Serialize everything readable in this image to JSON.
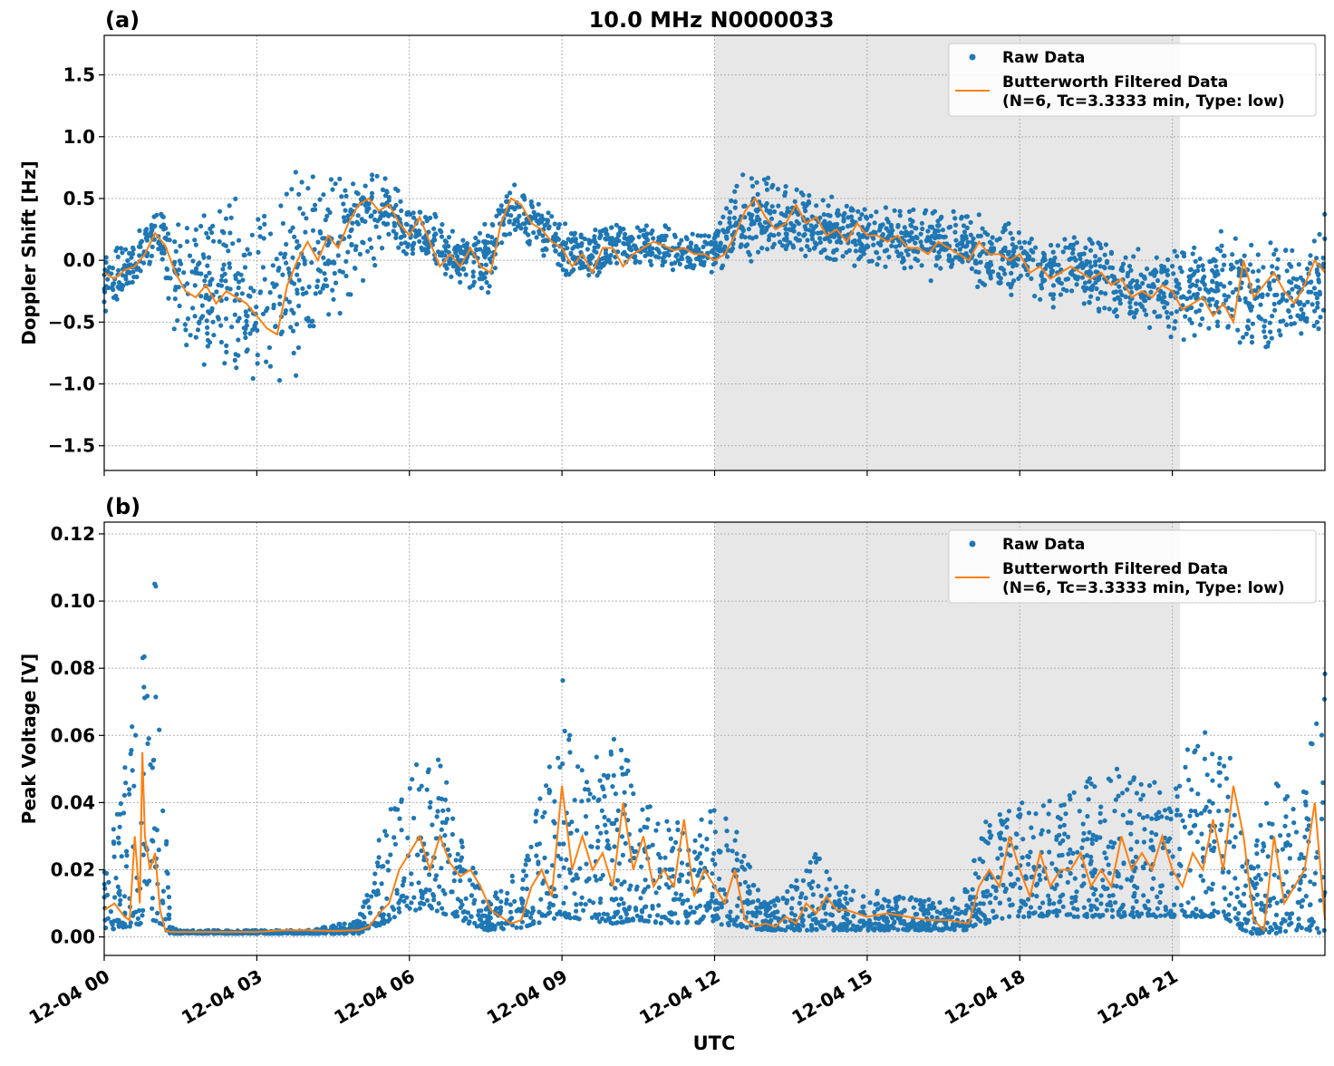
{
  "figure": {
    "title": "10.0 MHz N0000033",
    "xlabel": "UTC",
    "colors": {
      "raw": "#1f77b4",
      "filtered": "#ff7f0e",
      "shade": "#e7e7e7",
      "grid": "#b0b0b0"
    }
  },
  "legend": {
    "raw_label": "Raw Data",
    "filtered_label_1": "Butterworth Filtered Data",
    "filtered_label_2": "(N=6, Tc=3.3333 min, Type: low)",
    "placement": "upper-right"
  },
  "chart_data": [
    {
      "type": "scatter+line",
      "panel_label": "(a)",
      "title": "10.0 MHz N0000033",
      "ylabel": "Doppler Shift [Hz]",
      "xlabel": "",
      "x_unit": "hours since 12-04 00:00 UTC",
      "xlim": [
        0,
        24
      ],
      "ylim": [
        -1.7,
        1.82
      ],
      "yticks": [
        -1.5,
        -1.0,
        -0.5,
        0.0,
        0.5,
        1.0,
        1.5
      ],
      "ytick_labels": [
        "−1.5",
        "−1.0",
        "−0.5",
        "0.0",
        "0.5",
        "1.0",
        "1.5"
      ],
      "grid": true,
      "shaded_interval": [
        12.0,
        21.15
      ],
      "series": [
        {
          "name": "Butterworth Filtered Data",
          "x": [
            0,
            0.2,
            0.4,
            0.6,
            0.8,
            1.0,
            1.2,
            1.4,
            1.6,
            1.8,
            2.0,
            2.2,
            2.4,
            2.6,
            2.8,
            3.0,
            3.2,
            3.4,
            3.6,
            3.8,
            4.0,
            4.2,
            4.4,
            4.6,
            4.8,
            5.0,
            5.2,
            5.4,
            5.6,
            5.8,
            6.0,
            6.2,
            6.4,
            6.6,
            6.8,
            7.0,
            7.2,
            7.4,
            7.6,
            7.8,
            8.0,
            8.2,
            8.4,
            8.6,
            8.8,
            9.0,
            9.2,
            9.4,
            9.6,
            9.8,
            10.0,
            10.2,
            10.4,
            10.6,
            10.8,
            11.0,
            11.2,
            11.4,
            11.6,
            11.8,
            12.0,
            12.2,
            12.4,
            12.6,
            12.8,
            13.0,
            13.2,
            13.4,
            13.6,
            13.8,
            14.0,
            14.2,
            14.4,
            14.6,
            14.8,
            15.0,
            15.2,
            15.4,
            15.6,
            15.8,
            16.0,
            16.2,
            16.4,
            16.6,
            16.8,
            17.0,
            17.2,
            17.4,
            17.6,
            17.8,
            18.0,
            18.2,
            18.4,
            18.6,
            18.8,
            19.0,
            19.2,
            19.4,
            19.6,
            19.8,
            20.0,
            20.2,
            20.4,
            20.6,
            20.8,
            21.0,
            21.2,
            21.4,
            21.6,
            21.8,
            22.0,
            22.2,
            22.4,
            22.6,
            22.8,
            23.0,
            23.2,
            23.4,
            23.6,
            23.8,
            24.0
          ],
          "y": [
            -0.1,
            -0.15,
            -0.08,
            -0.05,
            0.05,
            0.22,
            0.12,
            -0.1,
            -0.25,
            -0.3,
            -0.2,
            -0.35,
            -0.25,
            -0.3,
            -0.35,
            -0.45,
            -0.55,
            -0.6,
            -0.2,
            0.0,
            0.15,
            0.0,
            0.2,
            0.1,
            0.3,
            0.45,
            0.5,
            0.4,
            0.45,
            0.3,
            0.2,
            0.35,
            0.15,
            -0.05,
            0.05,
            -0.05,
            0.1,
            -0.05,
            -0.1,
            0.3,
            0.5,
            0.45,
            0.3,
            0.25,
            0.15,
            0.1,
            -0.05,
            0.05,
            -0.1,
            0.1,
            0.1,
            -0.05,
            0.05,
            0.1,
            0.15,
            0.12,
            0.08,
            0.1,
            0.05,
            0.05,
            0.0,
            0.05,
            0.2,
            0.4,
            0.5,
            0.35,
            0.25,
            0.3,
            0.45,
            0.3,
            0.35,
            0.2,
            0.25,
            0.15,
            0.3,
            0.2,
            0.2,
            0.15,
            0.2,
            0.1,
            0.1,
            0.05,
            0.15,
            0.1,
            0.05,
            0.0,
            0.15,
            0.05,
            0.05,
            0.0,
            0.05,
            -0.1,
            -0.05,
            -0.15,
            -0.1,
            -0.05,
            -0.1,
            -0.15,
            -0.1,
            -0.2,
            -0.15,
            -0.3,
            -0.25,
            -0.3,
            -0.2,
            -0.25,
            -0.4,
            -0.35,
            -0.3,
            -0.45,
            -0.35,
            -0.5,
            0.0,
            -0.3,
            -0.2,
            -0.1,
            -0.25,
            -0.35,
            -0.2,
            0.0,
            -0.1
          ]
        },
        {
          "name": "Raw Data",
          "x": [
            0,
            0.5,
            1.0,
            1.5,
            2.0,
            2.5,
            3.0,
            3.5,
            4.0,
            4.5,
            5.0,
            5.5,
            6.0,
            6.5,
            7.0,
            7.5,
            8.0,
            8.5,
            9.0,
            9.5,
            10.0,
            10.5,
            11.0,
            11.5,
            12.0,
            12.5,
            13.0,
            13.5,
            14.0,
            14.5,
            15.0,
            15.5,
            16.0,
            16.5,
            17.0,
            17.5,
            18.0,
            18.5,
            19.0,
            19.5,
            20.0,
            20.5,
            21.0,
            21.5,
            22.0,
            22.5,
            23.0,
            23.5,
            24.0
          ],
          "y_low": [
            -0.45,
            -0.35,
            0.0,
            -0.85,
            -0.95,
            -0.9,
            -1.1,
            -1.25,
            -0.8,
            -0.6,
            -0.3,
            0.05,
            0.0,
            -0.15,
            -0.2,
            -0.3,
            0.1,
            0.05,
            -0.15,
            -0.2,
            -0.05,
            -0.1,
            -0.1,
            -0.1,
            -0.15,
            -0.1,
            0.0,
            -0.05,
            0.0,
            -0.05,
            -0.1,
            -0.1,
            -0.15,
            -0.2,
            -0.25,
            -0.3,
            -0.3,
            -0.4,
            -0.4,
            -0.45,
            -0.5,
            -0.6,
            -0.65,
            -0.7,
            -0.55,
            -0.75,
            -0.8,
            -0.7,
            -0.6
          ],
          "y_high": [
            0.1,
            0.15,
            0.45,
            0.45,
            0.6,
            0.55,
            0.5,
            0.75,
            0.8,
            0.75,
            0.9,
            0.75,
            0.45,
            0.4,
            0.25,
            0.3,
            0.7,
            0.55,
            0.35,
            0.3,
            0.35,
            0.3,
            0.3,
            0.25,
            0.3,
            0.75,
            0.7,
            0.65,
            0.55,
            0.5,
            0.45,
            0.45,
            0.45,
            0.5,
            0.4,
            0.35,
            0.3,
            0.25,
            0.25,
            0.2,
            0.15,
            0.1,
            0.1,
            0.15,
            0.3,
            0.15,
            0.2,
            0.25,
            0.45
          ]
        }
      ]
    },
    {
      "type": "scatter+line",
      "panel_label": "(b)",
      "ylabel": "Peak Voltage [V]",
      "xlabel": "UTC",
      "x_unit": "hours since 12-04 00:00 UTC",
      "xlim": [
        0,
        24
      ],
      "ylim": [
        -0.0055,
        0.1235
      ],
      "yticks": [
        0.0,
        0.02,
        0.04,
        0.06,
        0.08,
        0.1,
        0.12
      ],
      "ytick_labels": [
        "0.00",
        "0.02",
        "0.04",
        "0.06",
        "0.08",
        "0.10",
        "0.12"
      ],
      "xticks": [
        0,
        3,
        6,
        9,
        12,
        15,
        18,
        21
      ],
      "xtick_labels": [
        "12-04 00",
        "12-04 03",
        "12-04 06",
        "12-04 09",
        "12-04 12",
        "12-04 15",
        "12-04 18",
        "12-04 21"
      ],
      "grid": true,
      "shaded_interval": [
        12.0,
        21.15
      ],
      "series": [
        {
          "name": "Butterworth Filtered Data",
          "x": [
            0,
            0.2,
            0.4,
            0.5,
            0.6,
            0.7,
            0.75,
            0.8,
            0.9,
            1.0,
            1.1,
            1.2,
            1.3,
            1.5,
            2.0,
            2.5,
            3.0,
            3.5,
            4.0,
            4.5,
            5.0,
            5.2,
            5.4,
            5.6,
            5.8,
            6.0,
            6.2,
            6.4,
            6.6,
            6.8,
            7.0,
            7.2,
            7.4,
            7.6,
            7.8,
            8.0,
            8.2,
            8.4,
            8.6,
            8.8,
            9.0,
            9.2,
            9.4,
            9.6,
            9.8,
            10.0,
            10.2,
            10.4,
            10.6,
            10.8,
            11.0,
            11.2,
            11.4,
            11.6,
            11.8,
            12.0,
            12.2,
            12.4,
            12.6,
            12.8,
            13.0,
            13.2,
            13.4,
            13.6,
            13.8,
            14.0,
            14.2,
            14.4,
            14.6,
            14.8,
            15.0,
            15.4,
            15.8,
            16.2,
            16.6,
            17.0,
            17.2,
            17.4,
            17.6,
            17.8,
            18.0,
            18.2,
            18.4,
            18.6,
            18.8,
            19.0,
            19.2,
            19.4,
            19.6,
            19.8,
            20.0,
            20.2,
            20.4,
            20.6,
            20.8,
            21.0,
            21.2,
            21.4,
            21.6,
            21.8,
            22.0,
            22.2,
            22.4,
            22.6,
            22.8,
            23.0,
            23.2,
            23.4,
            23.6,
            23.8,
            24.0
          ],
          "y": [
            0.008,
            0.01,
            0.006,
            0.005,
            0.03,
            0.01,
            0.055,
            0.03,
            0.02,
            0.025,
            0.008,
            0.002,
            0.0015,
            0.0015,
            0.0015,
            0.0015,
            0.0015,
            0.002,
            0.002,
            0.0018,
            0.002,
            0.003,
            0.007,
            0.01,
            0.02,
            0.025,
            0.03,
            0.02,
            0.03,
            0.022,
            0.018,
            0.02,
            0.015,
            0.008,
            0.006,
            0.004,
            0.005,
            0.015,
            0.02,
            0.012,
            0.045,
            0.02,
            0.03,
            0.02,
            0.025,
            0.015,
            0.04,
            0.02,
            0.03,
            0.015,
            0.02,
            0.015,
            0.035,
            0.012,
            0.02,
            0.015,
            0.01,
            0.02,
            0.005,
            0.003,
            0.004,
            0.003,
            0.006,
            0.004,
            0.01,
            0.007,
            0.012,
            0.008,
            0.008,
            0.007,
            0.006,
            0.007,
            0.006,
            0.005,
            0.005,
            0.004,
            0.015,
            0.02,
            0.015,
            0.03,
            0.02,
            0.012,
            0.025,
            0.015,
            0.02,
            0.02,
            0.025,
            0.015,
            0.02,
            0.015,
            0.03,
            0.02,
            0.025,
            0.02,
            0.03,
            0.02,
            0.015,
            0.025,
            0.02,
            0.035,
            0.02,
            0.045,
            0.03,
            0.005,
            0.002,
            0.03,
            0.01,
            0.015,
            0.02,
            0.04,
            0.005
          ]
        },
        {
          "name": "Raw Data",
          "x": [
            0,
            0.5,
            1.0,
            1.3,
            1.5,
            2.0,
            3.0,
            4.0,
            5.0,
            5.5,
            6.0,
            6.5,
            7.0,
            7.5,
            8.0,
            8.5,
            9.0,
            9.5,
            10.0,
            10.5,
            11.0,
            11.5,
            12.0,
            12.5,
            13.0,
            13.5,
            14.0,
            14.5,
            15.0,
            15.5,
            16.0,
            16.5,
            17.0,
            17.5,
            18.0,
            18.5,
            19.0,
            19.5,
            20.0,
            20.5,
            21.0,
            21.5,
            22.0,
            22.5,
            23.0,
            23.5,
            24.0
          ],
          "y_low": [
            0.002,
            0.003,
            0.005,
            0.001,
            0.001,
            0.001,
            0.001,
            0.001,
            0.001,
            0.004,
            0.008,
            0.008,
            0.005,
            0.002,
            0.002,
            0.004,
            0.006,
            0.005,
            0.004,
            0.005,
            0.004,
            0.004,
            0.004,
            0.003,
            0.002,
            0.002,
            0.002,
            0.002,
            0.002,
            0.002,
            0.002,
            0.002,
            0.002,
            0.005,
            0.006,
            0.006,
            0.006,
            0.006,
            0.006,
            0.006,
            0.006,
            0.006,
            0.006,
            0.001,
            0.001,
            0.002,
            0.001
          ],
          "y_high": [
            0.02,
            0.06,
            0.11,
            0.003,
            0.002,
            0.002,
            0.002,
            0.002,
            0.005,
            0.035,
            0.05,
            0.06,
            0.035,
            0.01,
            0.02,
            0.04,
            0.08,
            0.05,
            0.06,
            0.05,
            0.04,
            0.035,
            0.04,
            0.03,
            0.01,
            0.015,
            0.025,
            0.015,
            0.015,
            0.012,
            0.012,
            0.01,
            0.02,
            0.045,
            0.04,
            0.04,
            0.045,
            0.05,
            0.05,
            0.045,
            0.05,
            0.06,
            0.07,
            0.02,
            0.05,
            0.04,
            0.08
          ]
        }
      ]
    }
  ]
}
